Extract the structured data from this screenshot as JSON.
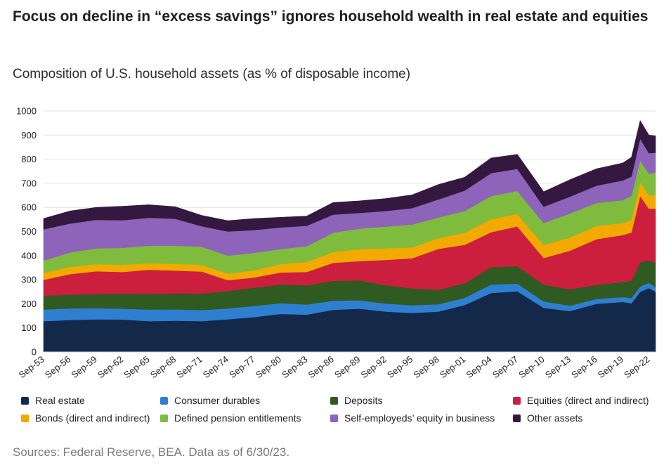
{
  "header": {
    "title": "Focus on decline in “excess savings” ignores household wealth in real estate and equities",
    "subtitle": "Composition of U.S. household assets (as % of disposable income)"
  },
  "source": "Sources: Federal Reserve, BEA. Data as of 6/30/23.",
  "chart_data": {
    "type": "area",
    "stacked": true,
    "title": "",
    "xlabel": "",
    "ylabel": "",
    "ylim": [
      0,
      1000
    ],
    "yticks": [
      0,
      100,
      200,
      300,
      400,
      500,
      600,
      700,
      800,
      900,
      1000
    ],
    "grid": "horizontal",
    "legend_position": "bottom",
    "x": [
      "Sep-53",
      "Sep-56",
      "Sep-59",
      "Sep-62",
      "Sep-65",
      "Sep-68",
      "Sep-71",
      "Sep-74",
      "Sep-77",
      "Sep-80",
      "Sep-83",
      "Sep-86",
      "Sep-89",
      "Sep-92",
      "Sep-95",
      "Sep-98",
      "Sep-01",
      "Sep-04",
      "Sep-07",
      "Sep-10",
      "Sep-13",
      "Sep-16",
      "Sep-19",
      "Sep-20",
      "Sep-21",
      "Sep-22",
      "Jun-23"
    ],
    "x_tick_labels": [
      "Sep-53",
      "Sep-56",
      "Sep-59",
      "Sep-62",
      "Sep-65",
      "Sep-68",
      "Sep-71",
      "Sep-74",
      "Sep-77",
      "Sep-80",
      "Sep-83",
      "Sep-86",
      "Sep-89",
      "Sep-92",
      "Sep-95",
      "Sep-98",
      "Sep-01",
      "Sep-04",
      "Sep-07",
      "Sep-10",
      "Sep-13",
      "Sep-16",
      "Sep-19",
      "Sep-22"
    ],
    "series": [
      {
        "name": "Real estate",
        "color": "#14294a",
        "values": [
          128,
          133,
          136,
          135,
          128,
          130,
          128,
          136,
          145,
          158,
          155,
          175,
          180,
          168,
          162,
          168,
          195,
          245,
          252,
          183,
          170,
          200,
          208,
          202,
          250,
          265,
          250
        ]
      },
      {
        "name": "Consumer durables",
        "color": "#2f7fd1",
        "values": [
          48,
          48,
          46,
          45,
          48,
          47,
          46,
          45,
          46,
          45,
          42,
          38,
          35,
          33,
          32,
          30,
          30,
          35,
          32,
          27,
          22,
          20,
          20,
          22,
          22,
          22,
          20
        ]
      },
      {
        "name": "Deposits",
        "color": "#2f5a21",
        "values": [
          58,
          57,
          58,
          62,
          65,
          66,
          68,
          72,
          76,
          77,
          80,
          82,
          82,
          76,
          70,
          60,
          60,
          72,
          72,
          70,
          68,
          58,
          62,
          72,
          100,
          93,
          100
        ]
      },
      {
        "name": "Equities (direct and indirect)",
        "color": "#cc1f3e",
        "values": [
          65,
          85,
          95,
          90,
          100,
          95,
          92,
          45,
          42,
          50,
          55,
          75,
          80,
          105,
          125,
          170,
          160,
          145,
          165,
          110,
          160,
          190,
          195,
          200,
          275,
          215,
          225
        ]
      },
      {
        "name": "Bonds (direct and indirect)",
        "color": "#f2a900",
        "values": [
          30,
          30,
          30,
          30,
          28,
          28,
          28,
          27,
          30,
          35,
          42,
          45,
          50,
          48,
          45,
          45,
          50,
          55,
          52,
          55,
          55,
          55,
          50,
          52,
          58,
          55,
          55
        ]
      },
      {
        "name": "Defined pension entitlements",
        "color": "#7fbb3d",
        "values": [
          50,
          60,
          65,
          70,
          72,
          75,
          75,
          75,
          72,
          62,
          65,
          80,
          85,
          90,
          95,
          85,
          90,
          95,
          95,
          90,
          100,
          95,
          95,
          100,
          90,
          90,
          95
        ]
      },
      {
        "name": "Self-employeds’ equity in business",
        "color": "#8d64b9",
        "values": [
          130,
          120,
          118,
          115,
          116,
          112,
          85,
          100,
          95,
          90,
          85,
          75,
          65,
          65,
          68,
          75,
          85,
          95,
          92,
          68,
          70,
          72,
          82,
          80,
          90,
          85,
          82
        ]
      },
      {
        "name": "Other assets",
        "color": "#35183f",
        "values": [
          45,
          52,
          52,
          58,
          54,
          50,
          45,
          45,
          48,
          42,
          40,
          50,
          50,
          52,
          55,
          62,
          55,
          63,
          60,
          62,
          70,
          70,
          72,
          80,
          75,
          75,
          70
        ]
      }
    ]
  }
}
